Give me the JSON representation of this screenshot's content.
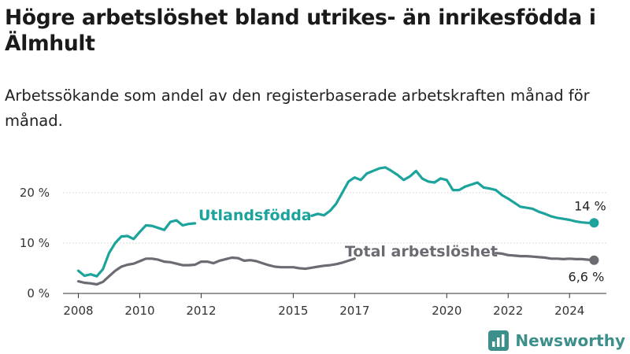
{
  "title": "Högre arbetslöshet bland utrikes- än inrikesfödda i Älmhult",
  "subtitle": "Arbetssökande som andel av den registerbaserade arbetskraften månad för månad.",
  "brand": {
    "name": "Newsworthy",
    "icon": "newsworthy-logo-icon"
  },
  "colors": {
    "foreign_born": "#1ba39c",
    "total": "#6b6b73",
    "axis": "#333333",
    "grid": "#d9d9d9"
  },
  "chart_data": {
    "type": "line",
    "title": "Högre arbetslöshet bland utrikes- än inrikesfödda i Älmhult",
    "subtitle": "Arbetssökande som andel av den registerbaserade arbetskraften månad för månad.",
    "xlabel": "",
    "ylabel": "",
    "xlim": [
      2007.5,
      2025.2
    ],
    "ylim": [
      0,
      27
    ],
    "xticks": [
      2008,
      2010,
      2012,
      2015,
      2017,
      2020,
      2022,
      2024
    ],
    "yticks": [
      0,
      10,
      20
    ],
    "ytick_labels": [
      "0 %",
      "10 %",
      "20 %"
    ],
    "grid": true,
    "legend": "inline",
    "series": [
      {
        "name": "Utlandsfödda",
        "end_label": "14 %",
        "points": [
          [
            2008.0,
            4.5
          ],
          [
            2008.2,
            3.5
          ],
          [
            2008.4,
            3.8
          ],
          [
            2008.6,
            3.4
          ],
          [
            2008.8,
            4.8
          ],
          [
            2009.0,
            8.0
          ],
          [
            2009.2,
            10.0
          ],
          [
            2009.4,
            11.3
          ],
          [
            2009.6,
            11.4
          ],
          [
            2009.8,
            10.8
          ],
          [
            2010.0,
            12.2
          ],
          [
            2010.2,
            13.5
          ],
          [
            2010.4,
            13.4
          ],
          [
            2010.6,
            13.0
          ],
          [
            2010.8,
            12.6
          ],
          [
            2011.0,
            14.2
          ],
          [
            2011.2,
            14.5
          ],
          [
            2011.4,
            13.5
          ],
          [
            2011.6,
            13.8
          ],
          [
            2011.8,
            13.9
          ],
          [
            2015.6,
            15.4
          ],
          [
            2015.8,
            15.8
          ],
          [
            2016.0,
            15.5
          ],
          [
            2016.2,
            16.4
          ],
          [
            2016.4,
            17.8
          ],
          [
            2016.6,
            20.0
          ],
          [
            2016.8,
            22.2
          ],
          [
            2017.0,
            23.0
          ],
          [
            2017.2,
            22.5
          ],
          [
            2017.4,
            23.8
          ],
          [
            2017.6,
            24.3
          ],
          [
            2017.8,
            24.8
          ],
          [
            2018.0,
            25.0
          ],
          [
            2018.2,
            24.3
          ],
          [
            2018.4,
            23.5
          ],
          [
            2018.6,
            22.5
          ],
          [
            2018.8,
            23.2
          ],
          [
            2019.0,
            24.3
          ],
          [
            2019.2,
            22.8
          ],
          [
            2019.4,
            22.2
          ],
          [
            2019.6,
            22.0
          ],
          [
            2019.8,
            22.8
          ],
          [
            2020.0,
            22.5
          ],
          [
            2020.2,
            20.5
          ],
          [
            2020.4,
            20.5
          ],
          [
            2020.6,
            21.2
          ],
          [
            2020.8,
            21.6
          ],
          [
            2021.0,
            22.0
          ],
          [
            2021.2,
            21.0
          ],
          [
            2021.4,
            20.8
          ],
          [
            2021.6,
            20.5
          ],
          [
            2021.8,
            19.5
          ],
          [
            2022.0,
            18.8
          ],
          [
            2022.2,
            18.0
          ],
          [
            2022.4,
            17.2
          ],
          [
            2022.6,
            17.0
          ],
          [
            2022.8,
            16.8
          ],
          [
            2023.0,
            16.2
          ],
          [
            2023.2,
            15.8
          ],
          [
            2023.4,
            15.3
          ],
          [
            2023.6,
            15.0
          ],
          [
            2023.8,
            14.8
          ],
          [
            2024.0,
            14.6
          ],
          [
            2024.2,
            14.3
          ],
          [
            2024.4,
            14.1
          ],
          [
            2024.6,
            14.0
          ],
          [
            2024.8,
            14.0
          ]
        ]
      },
      {
        "name": "Total arbetslöshet",
        "end_label": "6,6 %",
        "points": [
          [
            2008.0,
            2.4
          ],
          [
            2008.2,
            2.1
          ],
          [
            2008.4,
            2.0
          ],
          [
            2008.6,
            1.8
          ],
          [
            2008.8,
            2.3
          ],
          [
            2009.0,
            3.4
          ],
          [
            2009.2,
            4.5
          ],
          [
            2009.4,
            5.3
          ],
          [
            2009.6,
            5.7
          ],
          [
            2009.8,
            5.9
          ],
          [
            2010.0,
            6.4
          ],
          [
            2010.2,
            6.9
          ],
          [
            2010.4,
            6.9
          ],
          [
            2010.6,
            6.7
          ],
          [
            2010.8,
            6.3
          ],
          [
            2011.0,
            6.2
          ],
          [
            2011.2,
            5.9
          ],
          [
            2011.4,
            5.6
          ],
          [
            2011.6,
            5.6
          ],
          [
            2011.8,
            5.7
          ],
          [
            2012.0,
            6.3
          ],
          [
            2012.2,
            6.3
          ],
          [
            2012.4,
            6.0
          ],
          [
            2012.6,
            6.5
          ],
          [
            2012.8,
            6.8
          ],
          [
            2013.0,
            7.1
          ],
          [
            2013.2,
            7.0
          ],
          [
            2013.4,
            6.5
          ],
          [
            2013.6,
            6.6
          ],
          [
            2013.8,
            6.4
          ],
          [
            2014.0,
            6.0
          ],
          [
            2014.2,
            5.6
          ],
          [
            2014.4,
            5.3
          ],
          [
            2014.6,
            5.2
          ],
          [
            2014.8,
            5.2
          ],
          [
            2015.0,
            5.2
          ],
          [
            2015.2,
            5.0
          ],
          [
            2015.4,
            4.9
          ],
          [
            2015.6,
            5.1
          ],
          [
            2015.8,
            5.3
          ],
          [
            2016.0,
            5.5
          ],
          [
            2016.2,
            5.6
          ],
          [
            2016.4,
            5.8
          ],
          [
            2016.6,
            6.1
          ],
          [
            2016.8,
            6.5
          ],
          [
            2017.0,
            6.9
          ],
          [
            2021.6,
            8.0
          ],
          [
            2021.8,
            7.9
          ],
          [
            2022.0,
            7.6
          ],
          [
            2022.2,
            7.5
          ],
          [
            2022.4,
            7.4
          ],
          [
            2022.6,
            7.4
          ],
          [
            2022.8,
            7.3
          ],
          [
            2023.0,
            7.2
          ],
          [
            2023.2,
            7.1
          ],
          [
            2023.4,
            6.9
          ],
          [
            2023.6,
            6.9
          ],
          [
            2023.8,
            6.8
          ],
          [
            2024.0,
            6.9
          ],
          [
            2024.2,
            6.8
          ],
          [
            2024.4,
            6.8
          ],
          [
            2024.6,
            6.7
          ],
          [
            2024.8,
            6.6
          ]
        ]
      }
    ]
  }
}
